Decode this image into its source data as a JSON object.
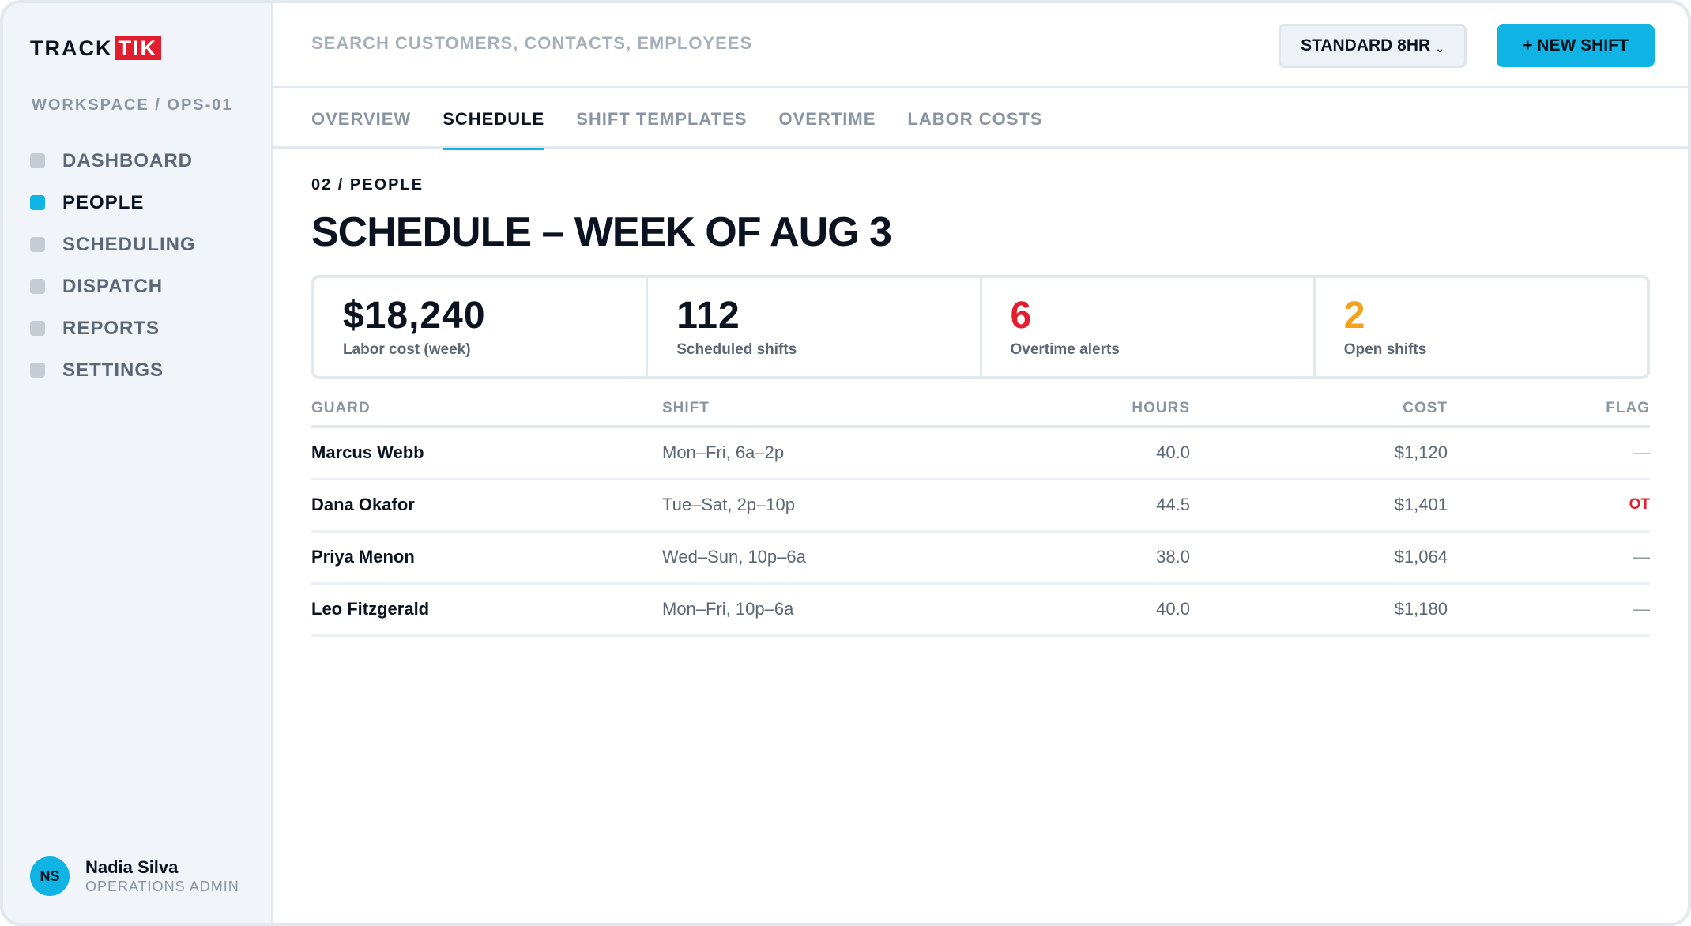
{
  "sidebar": {
    "logo_part1": "TRACK",
    "logo_part2": "TIK",
    "workspace": "WORKSPACE / OPS-01",
    "items": [
      {
        "label": "DASHBOARD"
      },
      {
        "label": "PEOPLE"
      },
      {
        "label": "SCHEDULING"
      },
      {
        "label": "DISPATCH"
      },
      {
        "label": "REPORTS"
      },
      {
        "label": "SETTINGS"
      }
    ],
    "user": {
      "initials": "NS",
      "name": "Nadia Silva",
      "role": "OPERATIONS ADMIN"
    }
  },
  "header": {
    "search_placeholder": "SEARCH CUSTOMERS, CONTACTS, EMPLOYEES",
    "dropdown_label": "STANDARD 8HR",
    "dropdown_chevron": "⌄",
    "new_button": "+ NEW SHIFT"
  },
  "tabs": [
    {
      "label": "OVERVIEW"
    },
    {
      "label": "SCHEDULE"
    },
    {
      "label": "SHIFT TEMPLATES"
    },
    {
      "label": "OVERTIME"
    },
    {
      "label": "LABOR COSTS"
    }
  ],
  "page": {
    "breadcrumb": "02 / PEOPLE",
    "title": "SCHEDULE – WEEK OF AUG 3"
  },
  "stats": [
    {
      "value": "$18,240",
      "label": "Labor cost (week)"
    },
    {
      "value": "112",
      "label": "Scheduled shifts"
    },
    {
      "value": "6",
      "label": "Overtime alerts"
    },
    {
      "value": "2",
      "label": "Open shifts"
    }
  ],
  "table": {
    "headers": {
      "guard": "GUARD",
      "shift": "SHIFT",
      "hours": "HOURS",
      "cost": "COST",
      "flag": "FLAG"
    },
    "rows": [
      {
        "guard": "Marcus Webb",
        "shift": "Mon–Fri, 6a–2p",
        "hours": "40.0",
        "cost": "$1,120",
        "flag": "—"
      },
      {
        "guard": "Dana Okafor",
        "shift": "Tue–Sat, 2p–10p",
        "hours": "44.5",
        "cost": "$1,401",
        "flag": "OT"
      },
      {
        "guard": "Priya Menon",
        "shift": "Wed–Sun, 10p–6a",
        "hours": "38.0",
        "cost": "$1,064",
        "flag": "—"
      },
      {
        "guard": "Leo Fitzgerald",
        "shift": "Mon–Fri, 10p–6a",
        "hours": "40.0",
        "cost": "$1,180",
        "flag": "—"
      }
    ]
  },
  "colors": {
    "accent": "#0fb4e4",
    "alert": "#e11d2e",
    "warning": "#f2a31b"
  }
}
